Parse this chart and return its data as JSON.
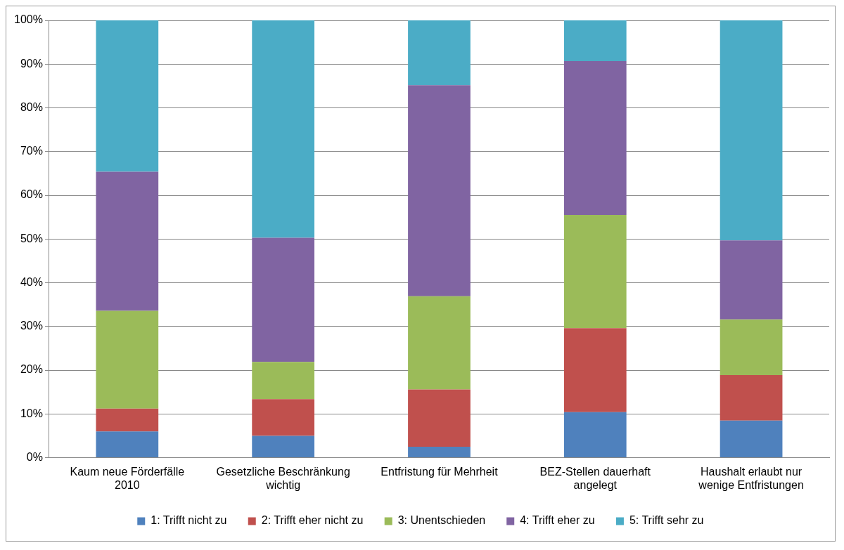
{
  "chart_data": {
    "type": "bar",
    "stacked": true,
    "categories": [
      "Kaum neue Förderfälle 2010",
      "Gesetzliche Beschränkung wichtig",
      "Entfristung für Mehrheit",
      "BEZ-Stellen dauerhaft angelegt",
      "Haushalt erlaubt nur wenige Entfristungen"
    ],
    "series": [
      {
        "name": "1: Trifft nicht zu",
        "color": "#4f81bd",
        "values": [
          6.0,
          5.0,
          2.5,
          10.4,
          8.5
        ]
      },
      {
        "name": "2: Trifft eher nicht zu",
        "color": "#c0504d",
        "values": [
          5.2,
          8.4,
          13.1,
          19.2,
          10.4
        ]
      },
      {
        "name": "3: Unentschieden",
        "color": "#9bbb59",
        "values": [
          22.4,
          8.5,
          21.3,
          25.9,
          12.7
        ]
      },
      {
        "name": "4: Trifft eher zu",
        "color": "#8064a2",
        "values": [
          31.8,
          28.4,
          48.3,
          35.2,
          18.1
        ]
      },
      {
        "name": "5: Trifft sehr zu",
        "color": "#4bacc6",
        "values": [
          34.6,
          49.7,
          14.8,
          9.3,
          50.3
        ]
      }
    ],
    "ylim": [
      0,
      100
    ],
    "yticks": [
      {
        "value": 0,
        "label": "0%"
      },
      {
        "value": 10,
        "label": "10%"
      },
      {
        "value": 20,
        "label": "20%"
      },
      {
        "value": 30,
        "label": "30%"
      },
      {
        "value": 40,
        "label": "40%"
      },
      {
        "value": 50,
        "label": "50%"
      },
      {
        "value": 60,
        "label": "60%"
      },
      {
        "value": 70,
        "label": "70%"
      },
      {
        "value": 80,
        "label": "80%"
      },
      {
        "value": 90,
        "label": "90%"
      },
      {
        "value": 100,
        "label": "100%"
      }
    ],
    "grid": "y",
    "legend": "bottom"
  }
}
